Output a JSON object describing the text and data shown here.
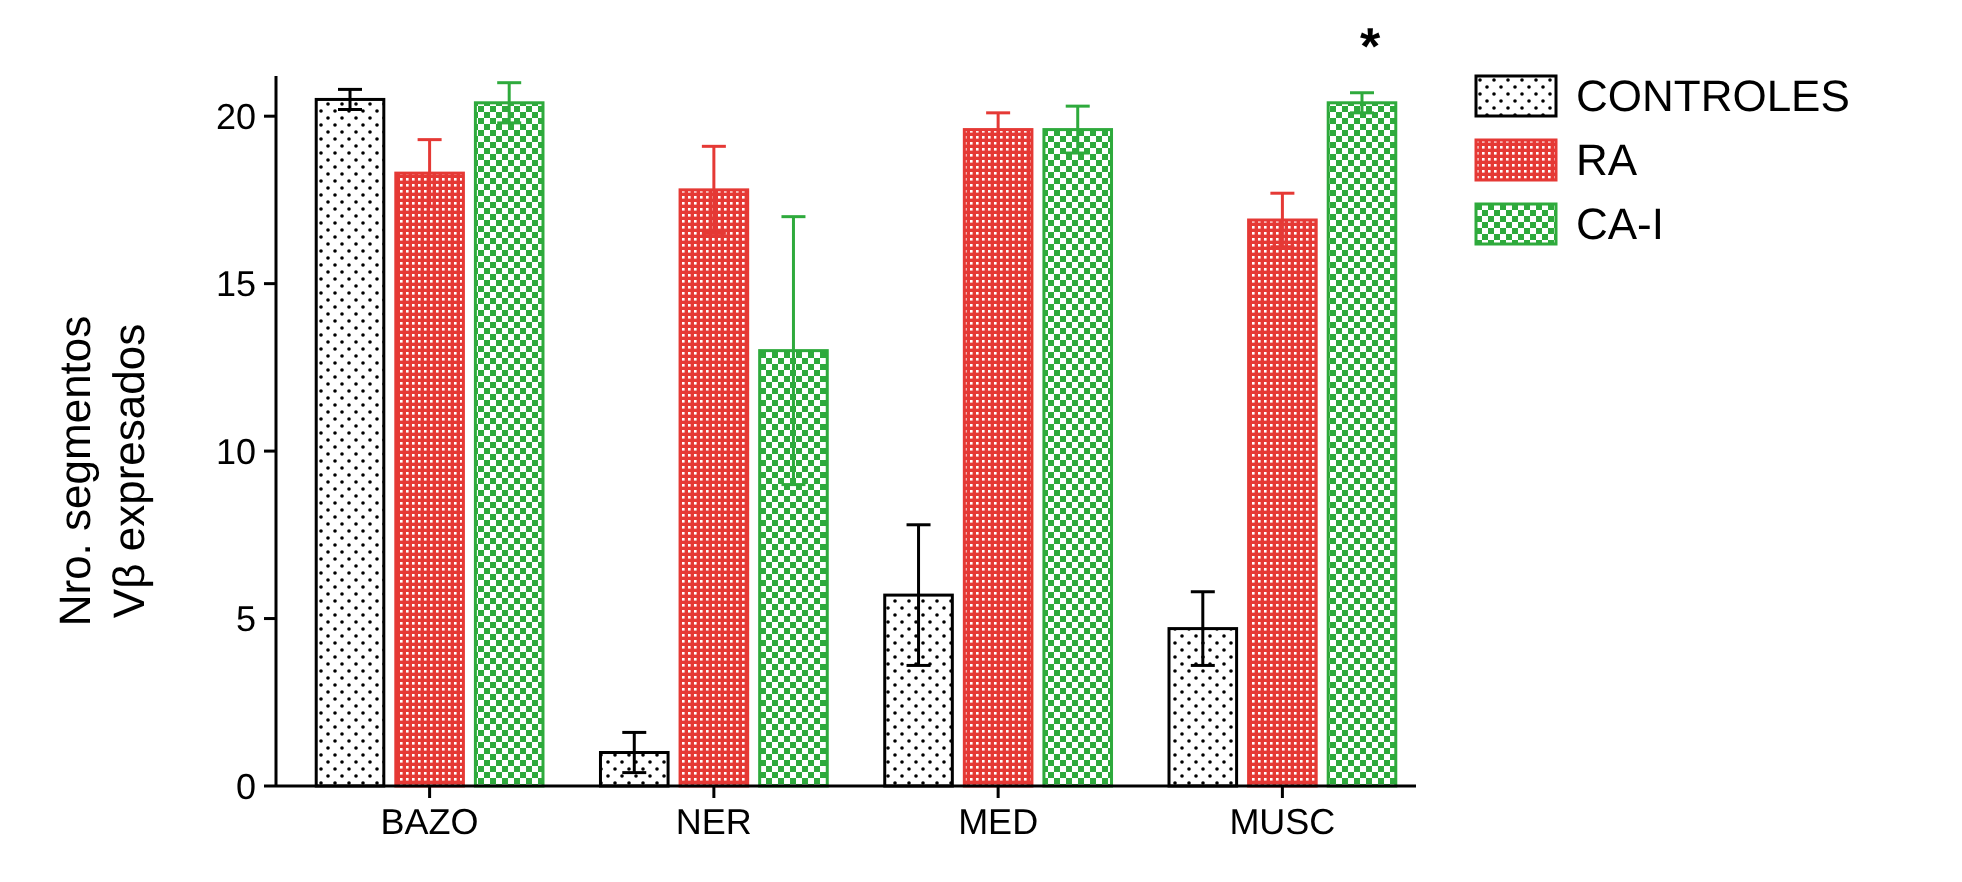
{
  "chart_data": {
    "type": "bar",
    "ylabel": "Nro. segmentos\nVβ expresados",
    "categories": [
      "BAZO",
      "NER",
      "MED",
      "MUSC"
    ],
    "series": [
      {
        "name": "CONTROLES",
        "color": "#000000",
        "values": [
          20.5,
          1.0,
          5.7,
          4.7
        ],
        "errors": [
          0.3,
          0.6,
          2.1,
          1.1
        ]
      },
      {
        "name": "RA",
        "color": "#e53935",
        "values": [
          18.3,
          17.8,
          19.6,
          16.9
        ],
        "errors": [
          1.0,
          1.3,
          0.5,
          0.8
        ]
      },
      {
        "name": "CA-I",
        "color": "#2eaa3c",
        "values": [
          20.4,
          13.0,
          19.6,
          20.4
        ],
        "errors": [
          0.6,
          4.0,
          0.7,
          0.3
        ]
      }
    ],
    "ylim": [
      0,
      21.2
    ],
    "yticks": [
      0,
      5,
      10,
      15,
      20
    ],
    "legend": "right",
    "annotations": [
      "*"
    ]
  }
}
